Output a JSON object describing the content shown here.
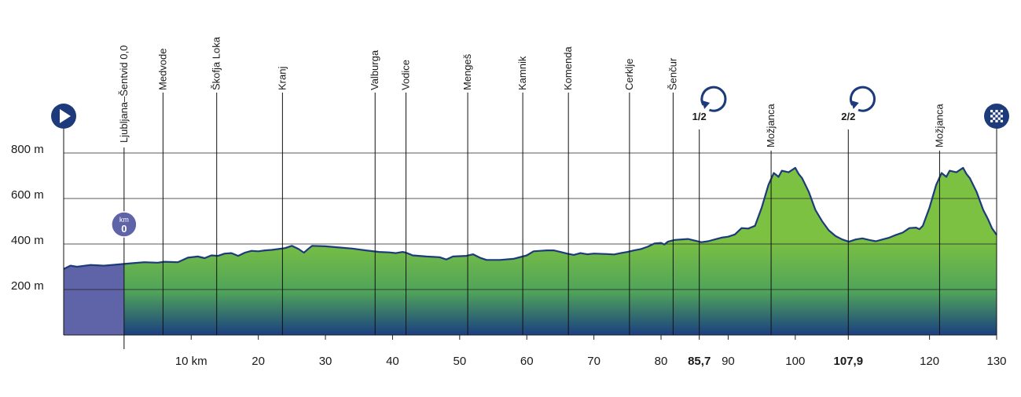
{
  "colors": {
    "neutral_fill": "#5f63a8",
    "green_top": "#7cc142",
    "green_mid": "#4fa35a",
    "green_bottom": "#1b3f80",
    "profile_line": "#1d3a7a",
    "gridline": "#222222",
    "marker_circle": "#1d3a7a",
    "km_badge": "#5f63a8"
  },
  "icons": {
    "start": "play-icon",
    "finish": "checkered-flag-icon",
    "lap": "circular-arrow-icon"
  },
  "km_badge": {
    "top": "km",
    "value": "0"
  },
  "chart_data": {
    "type": "area",
    "title": "",
    "xlabel": "",
    "ylabel": "",
    "y_unit": "m",
    "xlim": [
      -9,
      130
    ],
    "ylim": [
      0,
      800
    ],
    "y_ticks": [
      {
        "value": 200,
        "label": "200 m"
      },
      {
        "value": 400,
        "label": "400 m"
      },
      {
        "value": 600,
        "label": "600 m"
      },
      {
        "value": 800,
        "label": "800 m"
      }
    ],
    "x_ticks": [
      {
        "value": 10,
        "label": "10 km",
        "bold": false
      },
      {
        "value": 20,
        "label": "20",
        "bold": false
      },
      {
        "value": 30,
        "label": "30",
        "bold": false
      },
      {
        "value": 40,
        "label": "40",
        "bold": false
      },
      {
        "value": 50,
        "label": "50",
        "bold": false
      },
      {
        "value": 60,
        "label": "60",
        "bold": false
      },
      {
        "value": 70,
        "label": "70",
        "bold": false
      },
      {
        "value": 80,
        "label": "80",
        "bold": false
      },
      {
        "value": 85.7,
        "label": "85,7",
        "bold": true
      },
      {
        "value": 90,
        "label": "90",
        "bold": false
      },
      {
        "value": 100,
        "label": "100",
        "bold": false
      },
      {
        "value": 107.9,
        "label": "107,9",
        "bold": true
      },
      {
        "value": 120,
        "label": "120",
        "bold": false
      },
      {
        "value": 130,
        "label": "130",
        "bold": false
      }
    ],
    "neutral_end_km": 0,
    "profile": [
      [
        -9,
        290
      ],
      [
        -8,
        305
      ],
      [
        -7,
        300
      ],
      [
        -5,
        308
      ],
      [
        -3,
        305
      ],
      [
        -1,
        310
      ],
      [
        1,
        315
      ],
      [
        3,
        320
      ],
      [
        5,
        318
      ],
      [
        6,
        322
      ],
      [
        8,
        320
      ],
      [
        9.5,
        340
      ],
      [
        11,
        345
      ],
      [
        12,
        338
      ],
      [
        13,
        350
      ],
      [
        14,
        348
      ],
      [
        15,
        358
      ],
      [
        16,
        360
      ],
      [
        17,
        348
      ],
      [
        18,
        362
      ],
      [
        19,
        370
      ],
      [
        20,
        368
      ],
      [
        21,
        372
      ],
      [
        22,
        374
      ],
      [
        23,
        378
      ],
      [
        24,
        382
      ],
      [
        25,
        392
      ],
      [
        26,
        378
      ],
      [
        26.8,
        362
      ],
      [
        27.5,
        380
      ],
      [
        28,
        392
      ],
      [
        30,
        390
      ],
      [
        32,
        385
      ],
      [
        34,
        380
      ],
      [
        36,
        372
      ],
      [
        38,
        365
      ],
      [
        39.5,
        363
      ],
      [
        40.5,
        360
      ],
      [
        41.5,
        365
      ],
      [
        42,
        362
      ],
      [
        43,
        350
      ],
      [
        45,
        345
      ],
      [
        47,
        342
      ],
      [
        48,
        332
      ],
      [
        49,
        345
      ],
      [
        51,
        348
      ],
      [
        52,
        355
      ],
      [
        53,
        340
      ],
      [
        54,
        330
      ],
      [
        56,
        330
      ],
      [
        58,
        335
      ],
      [
        60,
        350
      ],
      [
        61,
        368
      ],
      [
        62,
        370
      ],
      [
        63,
        372
      ],
      [
        64,
        372
      ],
      [
        65,
        365
      ],
      [
        66,
        358
      ],
      [
        67,
        352
      ],
      [
        68,
        360
      ],
      [
        69,
        355
      ],
      [
        70,
        358
      ],
      [
        72,
        356
      ],
      [
        73,
        354
      ],
      [
        74,
        360
      ],
      [
        75,
        365
      ],
      [
        76,
        372
      ],
      [
        77,
        378
      ],
      [
        78,
        388
      ],
      [
        79,
        402
      ],
      [
        80,
        405
      ],
      [
        80.5,
        398
      ],
      [
        81,
        410
      ],
      [
        82,
        418
      ],
      [
        84,
        422
      ],
      [
        85,
        415
      ],
      [
        86,
        408
      ],
      [
        87,
        412
      ],
      [
        88,
        420
      ],
      [
        89,
        428
      ],
      [
        90,
        432
      ],
      [
        91,
        442
      ],
      [
        92,
        470
      ],
      [
        93,
        468
      ],
      [
        94,
        480
      ],
      [
        95,
        560
      ],
      [
        96,
        660
      ],
      [
        96.8,
        712
      ],
      [
        97.5,
        695
      ],
      [
        98,
        722
      ],
      [
        99,
        715
      ],
      [
        100,
        735
      ],
      [
        100.5,
        708
      ],
      [
        101,
        690
      ],
      [
        102,
        630
      ],
      [
        103,
        550
      ],
      [
        104,
        500
      ],
      [
        105,
        460
      ],
      [
        106,
        435
      ],
      [
        107,
        420
      ],
      [
        108,
        410
      ],
      [
        109,
        420
      ],
      [
        110,
        425
      ],
      [
        111,
        418
      ],
      [
        112,
        412
      ],
      [
        113,
        420
      ],
      [
        114,
        428
      ],
      [
        115,
        440
      ],
      [
        116,
        450
      ],
      [
        117,
        470
      ],
      [
        118,
        472
      ],
      [
        118.5,
        465
      ],
      [
        119,
        480
      ],
      [
        120,
        560
      ],
      [
        121,
        660
      ],
      [
        121.8,
        712
      ],
      [
        122.5,
        695
      ],
      [
        123,
        722
      ],
      [
        124,
        715
      ],
      [
        125,
        735
      ],
      [
        125.5,
        708
      ],
      [
        126,
        690
      ],
      [
        127,
        630
      ],
      [
        128,
        550
      ],
      [
        128.7,
        510
      ],
      [
        129.3,
        470
      ],
      [
        130,
        440
      ]
    ],
    "towns": [
      {
        "name": "Ljubljana–Šentvid 0,0",
        "km": 0
      },
      {
        "name": "Medvode",
        "km": 5.8
      },
      {
        "name": "Škofja Loka",
        "km": 13.8
      },
      {
        "name": "Kranj",
        "km": 23.6
      },
      {
        "name": "Valburga",
        "km": 37.4
      },
      {
        "name": "Vodice",
        "km": 42
      },
      {
        "name": "Mengeš",
        "km": 51.2
      },
      {
        "name": "Kamnik",
        "km": 59.4
      },
      {
        "name": "Komenda",
        "km": 66.2
      },
      {
        "name": "Cerklje",
        "km": 75.3
      },
      {
        "name": "Šenčur",
        "km": 81.8
      },
      {
        "name": "Možjanca",
        "km": 96.4
      },
      {
        "name": "Možjanca",
        "km": 121.5
      }
    ],
    "laps": [
      {
        "label": "1/2",
        "km": 85.7
      },
      {
        "label": "2/2",
        "km": 107.9
      }
    ]
  }
}
